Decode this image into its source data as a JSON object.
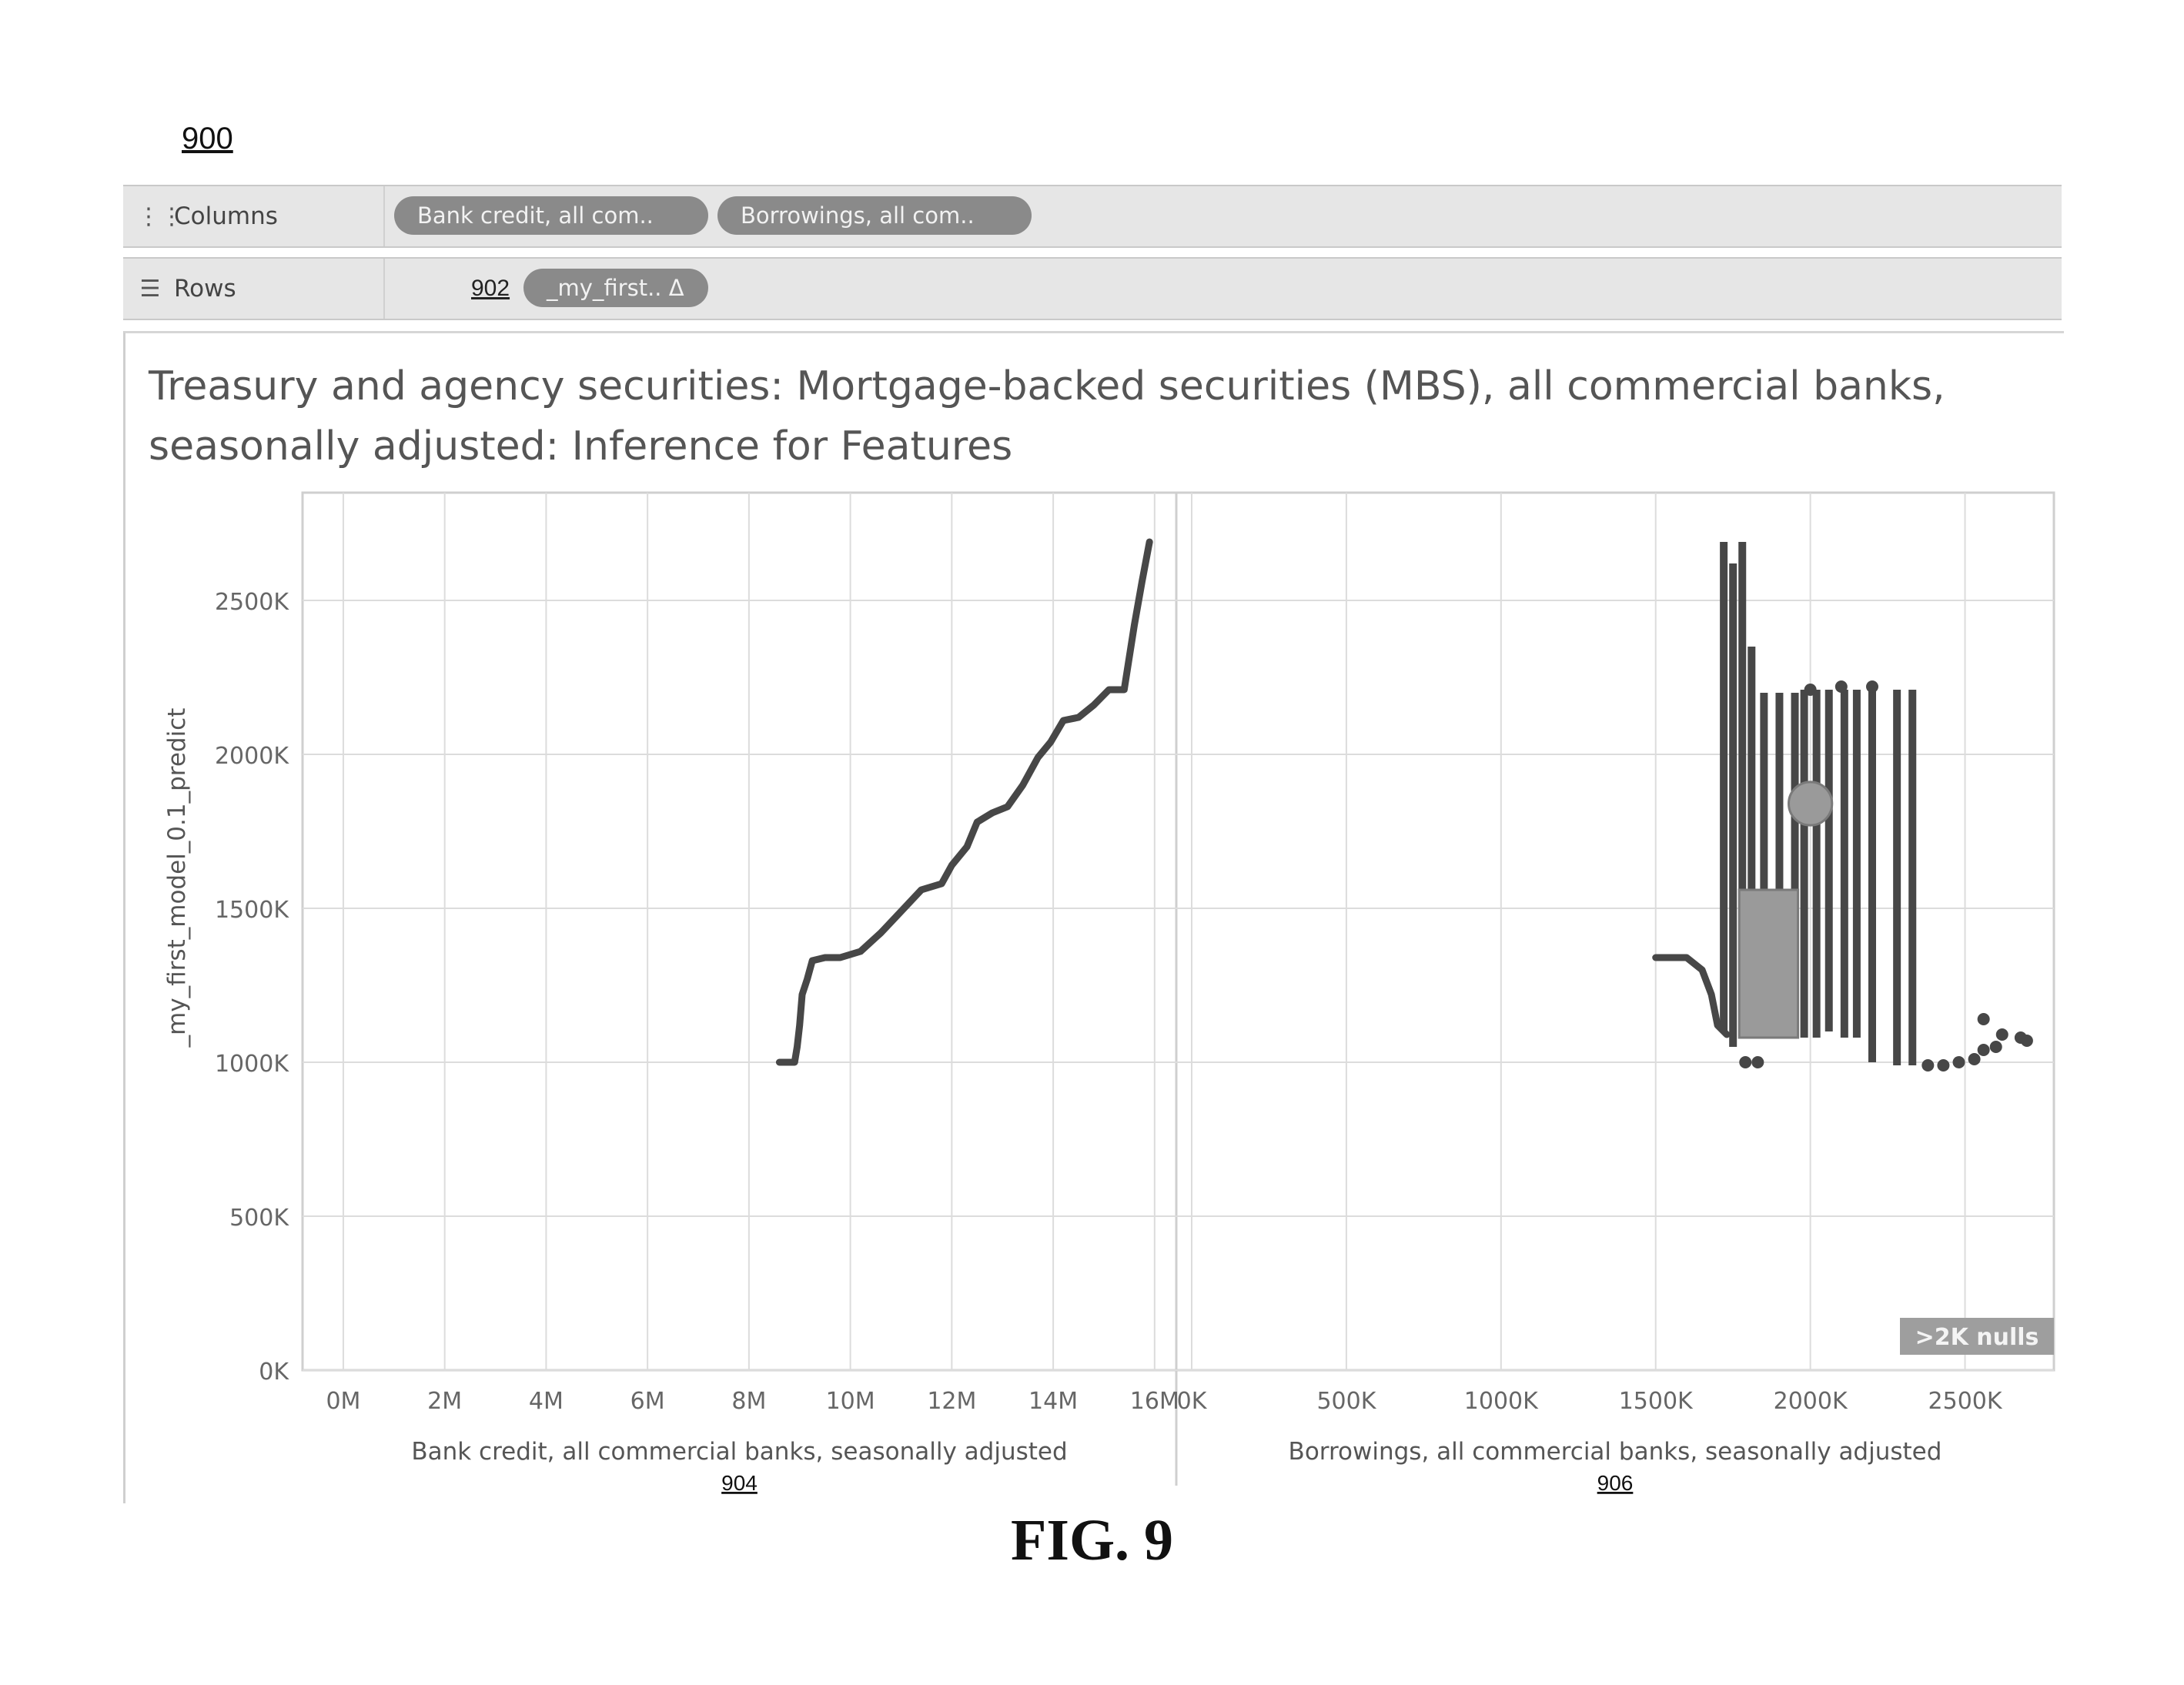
{
  "figure": {
    "number": "900",
    "caption": "FIG. 9"
  },
  "shelves": {
    "columns": {
      "label": "Columns",
      "icon": "columns-icon",
      "pills": [
        "Bank credit, all com..",
        "Borrowings, all com.."
      ]
    },
    "rows": {
      "label": "Rows",
      "icon": "rows-icon",
      "ref": "902",
      "pill": "_my_first.. Δ"
    }
  },
  "colors": {
    "mark": "#474747",
    "box": "#9a9a9a",
    "grid": "#dcdcdc",
    "nulls_badge": "#9e9e9e"
  },
  "chart_data": {
    "type": "scatter",
    "title": "Treasury and agency securities: Mortgage-backed securities (MBS), all commercial banks, seasonally adjusted: Inference for Features",
    "ylabel": "_my_first_model_0.1_predict",
    "ylim": [
      0,
      2850000
    ],
    "yticks": [
      "0K",
      "500K",
      "1000K",
      "1500K",
      "2000K",
      "2500K"
    ],
    "nulls_badge": ">2K nulls",
    "panels": [
      {
        "xlabel": "Bank credit, all commercial banks, seasonally adjusted",
        "ref": "904",
        "xlim": [
          -500000,
          16200000
        ],
        "xticks": [
          "0M",
          "2M",
          "4M",
          "6M",
          "8M",
          "10M",
          "12M",
          "14M",
          "16M"
        ],
        "series": [
          {
            "kind": "line",
            "points": [
              [
                8600000,
                1000000
              ],
              [
                8900000,
                1000000
              ],
              [
                8950000,
                1050000
              ],
              [
                9000000,
                1120000
              ],
              [
                9050000,
                1220000
              ],
              [
                9150000,
                1270000
              ],
              [
                9250000,
                1330000
              ],
              [
                9500000,
                1340000
              ],
              [
                9800000,
                1340000
              ],
              [
                10200000,
                1360000
              ],
              [
                10600000,
                1420000
              ],
              [
                11000000,
                1490000
              ],
              [
                11400000,
                1560000
              ],
              [
                11800000,
                1580000
              ],
              [
                12000000,
                1640000
              ],
              [
                12300000,
                1700000
              ],
              [
                12500000,
                1780000
              ],
              [
                12800000,
                1810000
              ],
              [
                13100000,
                1830000
              ],
              [
                13400000,
                1900000
              ],
              [
                13700000,
                1990000
              ],
              [
                13950000,
                2040000
              ],
              [
                14200000,
                2110000
              ],
              [
                14500000,
                2120000
              ],
              [
                14800000,
                2160000
              ],
              [
                15100000,
                2210000
              ],
              [
                15400000,
                2210000
              ],
              [
                15600000,
                2420000
              ],
              [
                15750000,
                2560000
              ],
              [
                15900000,
                2690000
              ]
            ]
          }
        ]
      },
      {
        "xlabel": "Borrowings, all commercial banks, seasonally adjusted",
        "ref": "906",
        "xlim": [
          0,
          2750000
        ],
        "xticks": [
          "0K",
          "500K",
          "1000K",
          "1500K",
          "2000K",
          "2500K"
        ],
        "series": [
          {
            "kind": "vline",
            "points": [
              [
                1720000,
                1100000,
                2690000
              ],
              [
                1750000,
                1050000,
                2620000
              ],
              [
                1780000,
                1080000,
                2690000
              ],
              [
                1810000,
                1150000,
                2350000
              ],
              [
                1850000,
                1100000,
                2200000
              ],
              [
                1900000,
                1080000,
                2200000
              ],
              [
                1950000,
                1100000,
                2200000
              ],
              [
                1980000,
                1080000,
                2210000
              ],
              [
                2020000,
                1080000,
                2210000
              ],
              [
                2060000,
                1100000,
                2210000
              ],
              [
                2110000,
                1080000,
                2210000
              ],
              [
                2150000,
                1080000,
                2210000
              ],
              [
                2200000,
                1000000,
                2210000
              ],
              [
                2280000,
                990000,
                2210000
              ],
              [
                2330000,
                990000,
                2210000
              ]
            ]
          },
          {
            "kind": "line",
            "points": [
              [
                1500000,
                1340000
              ],
              [
                1600000,
                1340000
              ],
              [
                1650000,
                1300000
              ],
              [
                1680000,
                1220000
              ],
              [
                1700000,
                1120000
              ],
              [
                1730000,
                1090000
              ]
            ]
          },
          {
            "kind": "box",
            "x0": 1770000,
            "x1": 1960000,
            "y0": 1080000,
            "y1": 1560000
          },
          {
            "kind": "circle",
            "x": 2000000,
            "y": 1840000,
            "r": 70000
          },
          {
            "kind": "dots",
            "points": [
              [
                1790000,
                1000000
              ],
              [
                1830000,
                1000000
              ],
              [
                2380000,
                990000
              ],
              [
                2430000,
                990000
              ],
              [
                2480000,
                1000000
              ],
              [
                2530000,
                1010000
              ],
              [
                2560000,
                1040000
              ],
              [
                2600000,
                1050000
              ],
              [
                2620000,
                1090000
              ],
              [
                2680000,
                1080000
              ],
              [
                2700000,
                1070000
              ],
              [
                2560000,
                1140000
              ],
              [
                2000000,
                2210000
              ],
              [
                2100000,
                2220000
              ],
              [
                2200000,
                2220000
              ]
            ]
          }
        ]
      }
    ]
  }
}
